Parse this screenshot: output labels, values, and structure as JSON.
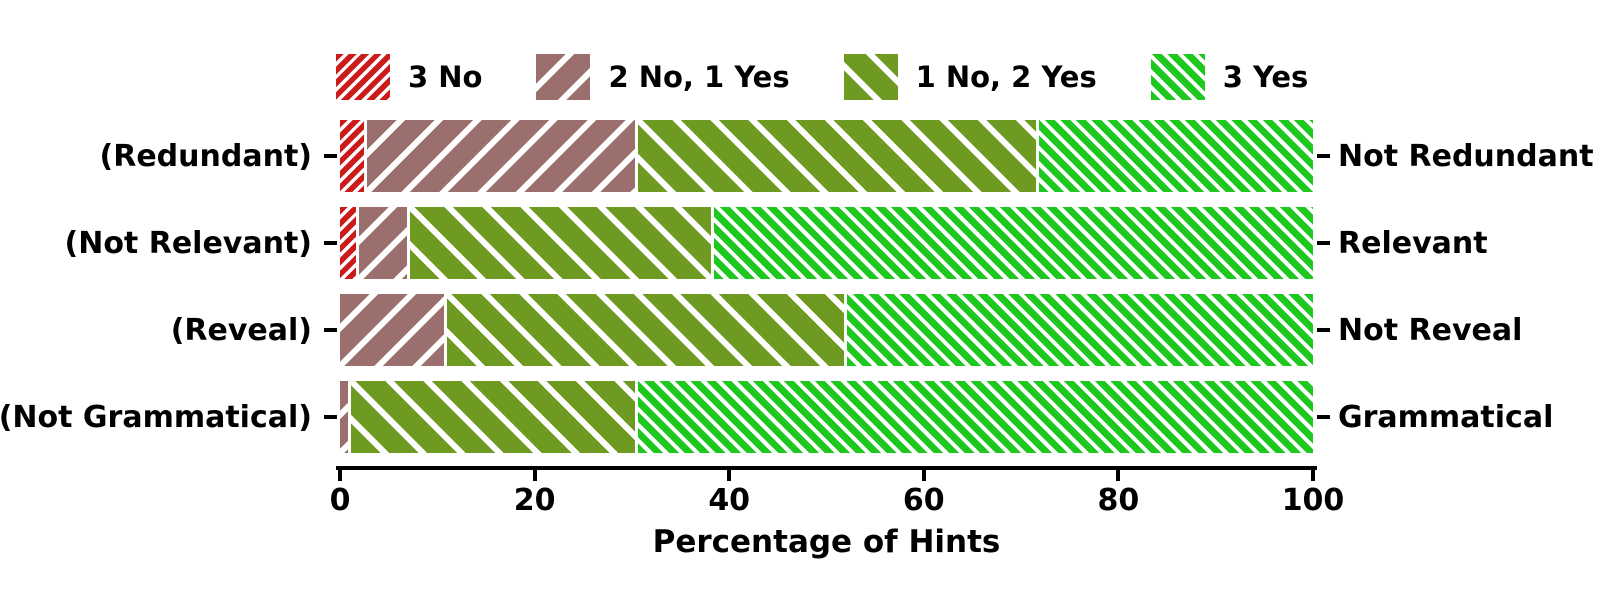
{
  "chart_data": {
    "type": "bar",
    "orientation": "horizontal-stacked",
    "xlabel": "Percentage of Hints",
    "xlim": [
      0,
      100
    ],
    "xticks": [
      0,
      20,
      40,
      60,
      80,
      100
    ],
    "grid": false,
    "legend_position": "top",
    "legend": [
      {
        "label": "3 No",
        "color": "#cc1b1b",
        "hatch": "///"
      },
      {
        "label": "2 No, 1 Yes",
        "color": "#9c6f6f",
        "hatch": "/"
      },
      {
        "label": "1 No, 2 Yes",
        "color": "#6e9a22",
        "hatch": "\\"
      },
      {
        "label": "3 Yes",
        "color": "#1ec81e",
        "hatch": "\\\\"
      }
    ],
    "rows": [
      {
        "left_label": "(Redundant)",
        "right_label": "Not Redundant",
        "segments": [
          2.5,
          27.8,
          41.2,
          28.5
        ]
      },
      {
        "left_label": "(Not Relevant)",
        "right_label": "Relevant",
        "segments": [
          1.6,
          5.3,
          31.2,
          61.9
        ]
      },
      {
        "left_label": "(Reveal)",
        "right_label": "Not Reveal",
        "segments": [
          0,
          10.7,
          41.1,
          48.2
        ]
      },
      {
        "left_label": "(Not Grammatical)",
        "right_label": "Grammatical",
        "segments": [
          0,
          0.8,
          29.5,
          69.7
        ]
      }
    ]
  }
}
